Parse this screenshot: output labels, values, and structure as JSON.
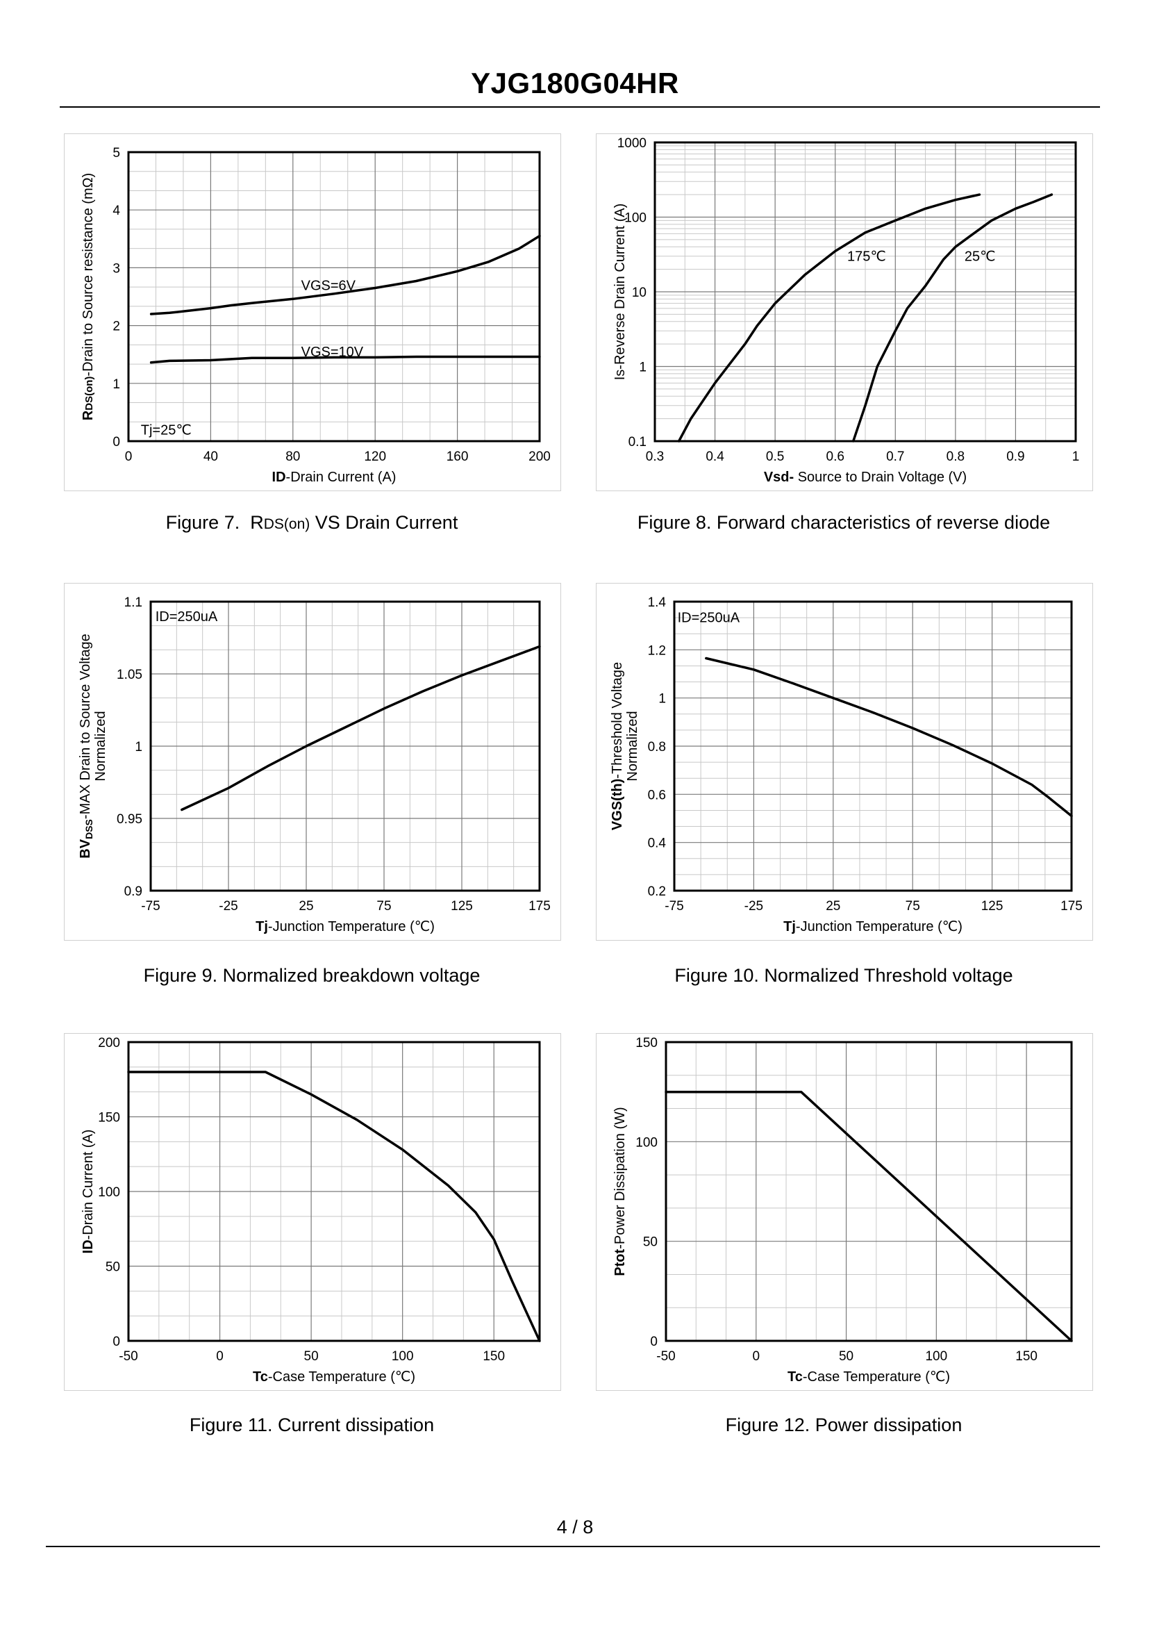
{
  "header": {
    "title": "YJG180G04HR"
  },
  "footer": {
    "page": "4 / 8"
  },
  "captions": {
    "fig7": "Figure 7.  RDS(on) VS Drain Current",
    "fig8": "Figure 8.  Forward characteristics of reverse diode",
    "fig9": "Figure 9.  Normalized breakdown voltage",
    "fig10": "Figure 10.  Normalized Threshold voltage",
    "fig11": "Figure 11.  Current dissipation",
    "fig12": "Figure 12.  Power dissipation"
  },
  "chart_data": [
    {
      "id": "fig7",
      "type": "line",
      "xscale": "linear",
      "xlim": [
        0,
        200
      ],
      "ylim": [
        0,
        5
      ],
      "xticks": [
        0,
        40,
        80,
        120,
        160,
        200
      ],
      "yticks": [
        0,
        1,
        2,
        3,
        4,
        5
      ],
      "xlabel_bold": "ID",
      "xlabel": "-Drain Current (A)",
      "ylabel": "RDS(on)-Drain to Source resistance (mΩ)",
      "annotations": [
        {
          "text": "Tj=25℃",
          "x": 6,
          "y": 0.2
        },
        {
          "text": "VGS=6V",
          "x": 84,
          "y": 2.7
        },
        {
          "text": "VGS=10V",
          "x": 84,
          "y": 1.55
        }
      ],
      "series": [
        {
          "name": "VGS=6V",
          "x": [
            11,
            20,
            30,
            40,
            50,
            60,
            80,
            100,
            120,
            140,
            160,
            175,
            190,
            200
          ],
          "y": [
            2.2,
            2.22,
            2.26,
            2.3,
            2.35,
            2.39,
            2.46,
            2.55,
            2.65,
            2.77,
            2.94,
            3.1,
            3.33,
            3.55
          ]
        },
        {
          "name": "VGS=10V",
          "x": [
            11,
            20,
            40,
            60,
            80,
            100,
            120,
            140,
            160,
            180,
            200
          ],
          "y": [
            1.36,
            1.39,
            1.4,
            1.44,
            1.44,
            1.45,
            1.45,
            1.46,
            1.46,
            1.46,
            1.46
          ]
        }
      ]
    },
    {
      "id": "fig8",
      "type": "line",
      "xscale": "linear",
      "yscale": "log",
      "xlim": [
        0.3,
        1.0
      ],
      "ylim": [
        0.1,
        1000
      ],
      "xticks": [
        0.3,
        0.4,
        0.5,
        0.6,
        0.7,
        0.8,
        0.9,
        1
      ],
      "xtick_labels": [
        "0.3",
        "0.4",
        "0.5",
        "0.6",
        "0.7",
        "0.8",
        "0.9",
        "1"
      ],
      "yticks": [
        0.1,
        1,
        10,
        100,
        1000
      ],
      "ytick_labels": [
        "0.1",
        "1",
        "10",
        "100",
        "1000"
      ],
      "xlabel_bold": "Vsd-",
      "xlabel": " Source to Drain Voltage (V)",
      "ylabel": "Is-Reverse  Drain Current (A)",
      "annotations": [
        {
          "text": "175℃",
          "x": 0.62,
          "y": 30
        },
        {
          "text": "25℃",
          "x": 0.815,
          "y": 30
        }
      ],
      "series": [
        {
          "name": "175℃",
          "x": [
            0.34,
            0.36,
            0.4,
            0.45,
            0.47,
            0.5,
            0.55,
            0.6,
            0.65,
            0.7,
            0.75,
            0.8,
            0.84
          ],
          "y": [
            0.1,
            0.2,
            0.6,
            2,
            3.5,
            7,
            17,
            35,
            62,
            90,
            130,
            170,
            200
          ]
        },
        {
          "name": "25℃",
          "x": [
            0.63,
            0.65,
            0.67,
            0.7,
            0.72,
            0.75,
            0.78,
            0.8,
            0.83,
            0.86,
            0.9,
            0.93,
            0.96
          ],
          "y": [
            0.1,
            0.3,
            1,
            3,
            6,
            12,
            27,
            40,
            60,
            90,
            130,
            160,
            200
          ]
        }
      ]
    },
    {
      "id": "fig9",
      "type": "line",
      "xlim": [
        -75,
        175
      ],
      "ylim": [
        0.9,
        1.1
      ],
      "xticks": [
        -75,
        -25,
        25,
        75,
        125,
        175
      ],
      "yticks": [
        0.9,
        0.95,
        1,
        1.05,
        1.1
      ],
      "ytick_labels": [
        "0.9",
        "0.95",
        "1",
        "1.05",
        "1.1"
      ],
      "xlabel_bold": "Tj",
      "xlabel": "-Junction  Temperature (℃)",
      "ylabel": "BVDSS-MAX Drain to Source Voltage",
      "ylabel2": "Normalized",
      "annotations": [
        {
          "text": "ID=250uA",
          "x": -72,
          "y": 1.09
        }
      ],
      "series": [
        {
          "name": "BVDSS",
          "x": [
            -55,
            -25,
            0,
            25,
            50,
            75,
            100,
            125,
            150,
            175
          ],
          "y": [
            0.956,
            0.971,
            0.986,
            1.0,
            1.013,
            1.026,
            1.038,
            1.049,
            1.059,
            1.069
          ]
        }
      ]
    },
    {
      "id": "fig10",
      "type": "line",
      "xlim": [
        -75,
        175
      ],
      "ylim": [
        0.2,
        1.4
      ],
      "xticks": [
        -75,
        -25,
        25,
        75,
        125,
        175
      ],
      "yticks": [
        0.2,
        0.4,
        0.6,
        0.8,
        1,
        1.2,
        1.4
      ],
      "ytick_labels": [
        "0.2",
        "0.4",
        "0.6",
        "0.8",
        "1",
        "1.2",
        "1.4"
      ],
      "xlabel_bold": "Tj",
      "xlabel": "-Junction  Temperature (℃)",
      "ylabel": "VGS(th)-Threshold  Voltage",
      "ylabel2": "Normalized",
      "annotations": [
        {
          "text": "ID=250uA",
          "x": -73,
          "y": 1.335
        }
      ],
      "series": [
        {
          "name": "VGS(th)",
          "x": [
            -55,
            -25,
            0,
            25,
            50,
            75,
            100,
            125,
            150,
            160,
            175
          ],
          "y": [
            1.165,
            1.118,
            1.06,
            1.0,
            0.94,
            0.875,
            0.805,
            0.728,
            0.64,
            0.59,
            0.51
          ]
        }
      ]
    },
    {
      "id": "fig11",
      "type": "line",
      "xlim": [
        -50,
        175
      ],
      "ylim": [
        0,
        200
      ],
      "xticks": [
        -50,
        0,
        50,
        100,
        150
      ],
      "yticks": [
        0,
        50,
        100,
        150,
        200
      ],
      "xlabel_bold": "Tc",
      "xlabel": "-Case Temperature (℃)",
      "ylabel_bold": "ID",
      "ylabel": "-Drain Current (A)",
      "series": [
        {
          "name": "ID",
          "x": [
            -50,
            25,
            50,
            75,
            100,
            125,
            140,
            150,
            160,
            175
          ],
          "y": [
            180,
            180,
            165,
            148,
            128,
            104,
            86,
            68,
            40,
            0
          ]
        }
      ]
    },
    {
      "id": "fig12",
      "type": "line",
      "xlim": [
        -50,
        175
      ],
      "ylim": [
        0,
        150
      ],
      "xticks": [
        -50,
        0,
        50,
        100,
        150
      ],
      "yticks": [
        0,
        50,
        100,
        150
      ],
      "xlabel_bold": "Tc",
      "xlabel": "-Case Temperature (℃)",
      "ylabel": "Ptot-Power Dissipation (W)",
      "series": [
        {
          "name": "Ptot",
          "x": [
            -50,
            25,
            175
          ],
          "y": [
            125,
            125,
            0
          ]
        }
      ]
    }
  ]
}
